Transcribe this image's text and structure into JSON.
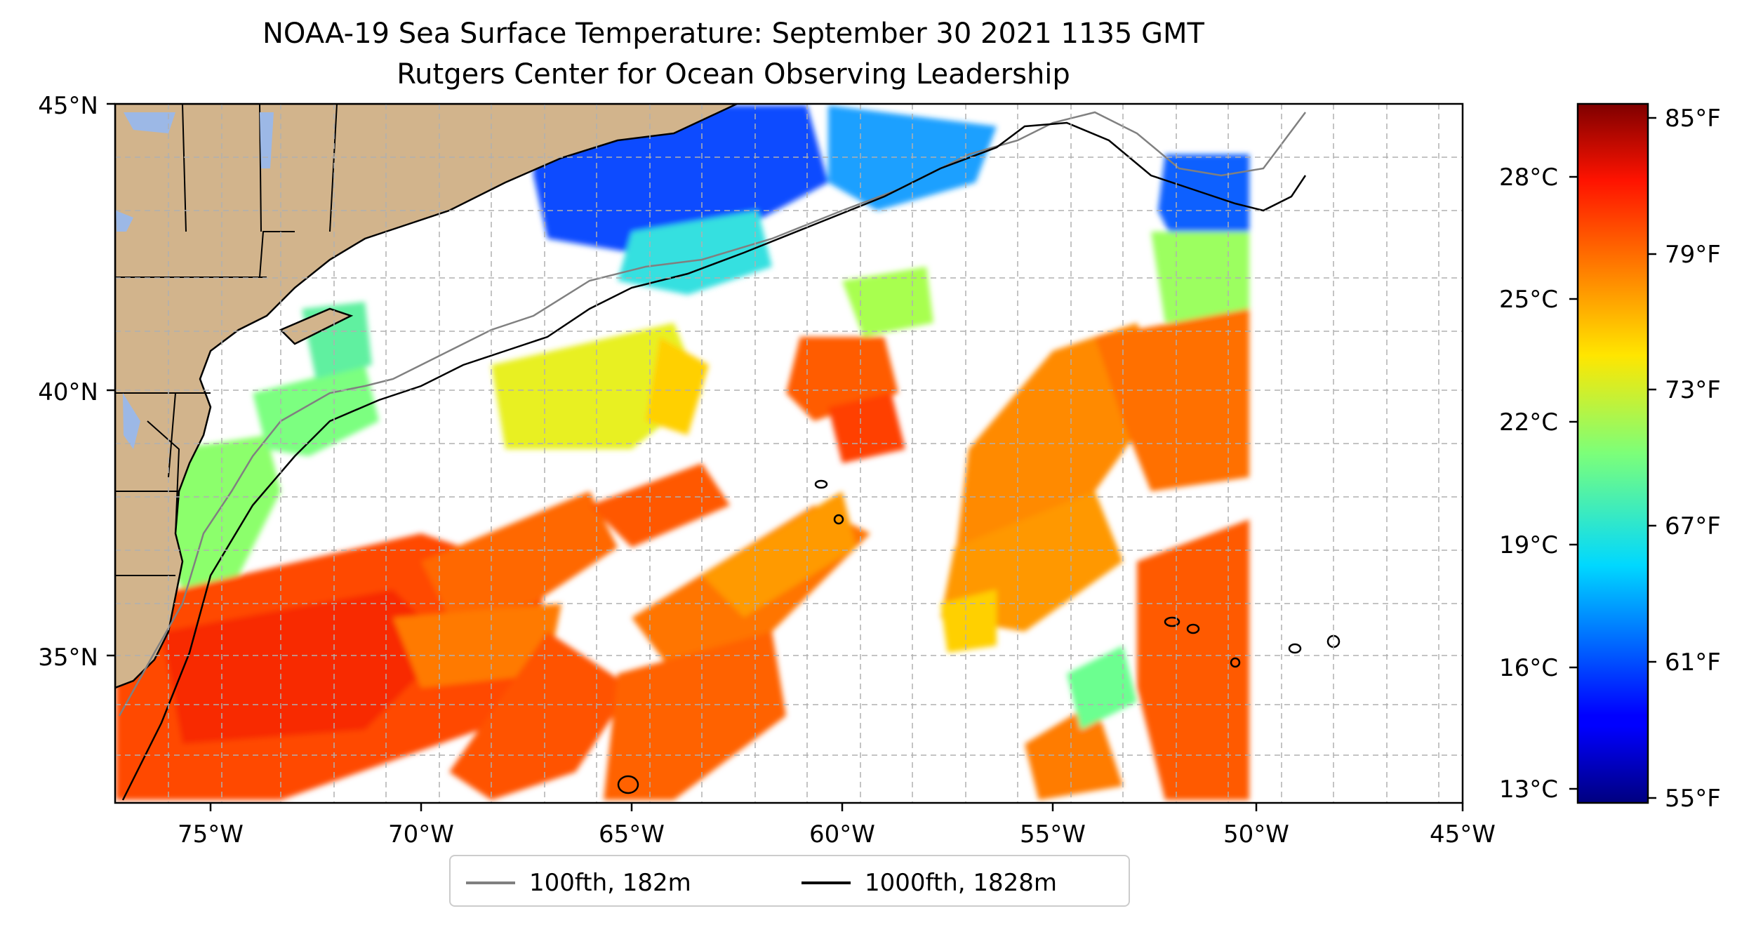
{
  "title": {
    "line1": "NOAA-19 Sea Surface Temperature: September 30 2021 1135 GMT",
    "line2": "Rutgers Center for Ocean Observing Leadership"
  },
  "map": {
    "lat_labels": [
      "45°N",
      "40°N",
      "35°N"
    ],
    "lon_labels": [
      "75°W",
      "70°W",
      "65°W",
      "60°W",
      "55°W",
      "50°W",
      "45°W"
    ],
    "colors": {
      "land": "#d2b48c",
      "lakes": "#9cb8e6",
      "grid": "#b0b0b0",
      "isobath_100": "#808080",
      "isobath_1000": "#000000"
    }
  },
  "colorbar": {
    "celsius_labels": [
      "28°C",
      "25°C",
      "22°C",
      "19°C",
      "16°C",
      "13°C"
    ],
    "fahrenheit_labels": [
      "85°F",
      "79°F",
      "73°F",
      "67°F",
      "61°F",
      "55°F"
    ],
    "colormap": "jet"
  },
  "legend": {
    "items": [
      {
        "label": "100fth, 182m",
        "color": "#808080"
      },
      {
        "label": "1000fth, 1828m",
        "color": "#000000"
      }
    ]
  }
}
